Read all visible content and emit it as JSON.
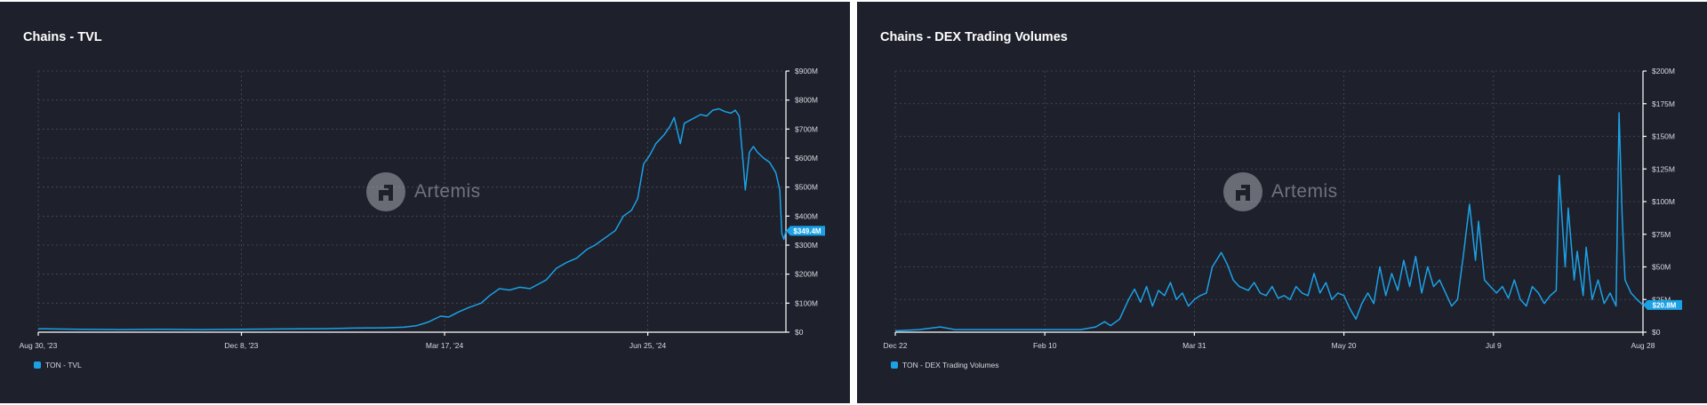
{
  "panels": [
    {
      "title": "Chains - TVL",
      "watermark": "Artemis",
      "legend": "TON - TVL",
      "series_color": "#1ba1e6",
      "last_value_label": "$349.4M"
    },
    {
      "title": "Chains - DEX Trading Volumes",
      "watermark": "Artemis",
      "legend": "TON - DEX Trading Volumes",
      "series_color": "#1ba1e6",
      "last_value_label": "$20.8M"
    }
  ],
  "chart_data": [
    {
      "type": "line",
      "title": "Chains - TVL",
      "series_name": "TON - TVL",
      "x_tick_labels": [
        "Aug 30, '23",
        "Dec 8, '23",
        "Mar 17, '24",
        "Jun 25, '24"
      ],
      "x_tick_days": [
        0,
        100,
        200,
        300
      ],
      "x_range": [
        0,
        368
      ],
      "y_range": [
        0,
        900
      ],
      "y_unit": "$M",
      "y_ticks": [
        0,
        100,
        200,
        300,
        400,
        500,
        600,
        700,
        800,
        900
      ],
      "y_tick_labels": [
        "$0",
        "$100M",
        "$200M",
        "$300M",
        "$400M",
        "$500M",
        "$600M",
        "$700M",
        "$800M",
        "$900M"
      ],
      "last_value": 349.4,
      "last_value_label": "$349.4M",
      "points": [
        [
          0,
          12
        ],
        [
          20,
          10
        ],
        [
          40,
          9
        ],
        [
          60,
          10
        ],
        [
          80,
          9
        ],
        [
          100,
          10
        ],
        [
          120,
          11
        ],
        [
          140,
          12
        ],
        [
          155,
          14
        ],
        [
          170,
          15
        ],
        [
          180,
          17
        ],
        [
          186,
          22
        ],
        [
          192,
          35
        ],
        [
          198,
          55
        ],
        [
          202,
          52
        ],
        [
          207,
          70
        ],
        [
          212,
          85
        ],
        [
          218,
          100
        ],
        [
          222,
          125
        ],
        [
          227,
          150
        ],
        [
          232,
          145
        ],
        [
          237,
          155
        ],
        [
          242,
          150
        ],
        [
          246,
          165
        ],
        [
          250,
          180
        ],
        [
          255,
          220
        ],
        [
          260,
          240
        ],
        [
          265,
          255
        ],
        [
          270,
          285
        ],
        [
          274,
          300
        ],
        [
          280,
          330
        ],
        [
          284,
          350
        ],
        [
          288,
          400
        ],
        [
          292,
          420
        ],
        [
          295,
          460
        ],
        [
          298,
          580
        ],
        [
          301,
          610
        ],
        [
          304,
          650
        ],
        [
          308,
          680
        ],
        [
          311,
          710
        ],
        [
          313,
          740
        ],
        [
          316,
          650
        ],
        [
          318,
          720
        ],
        [
          322,
          735
        ],
        [
          326,
          750
        ],
        [
          329,
          745
        ],
        [
          332,
          765
        ],
        [
          335,
          770
        ],
        [
          338,
          760
        ],
        [
          341,
          755
        ],
        [
          343,
          765
        ],
        [
          345,
          745
        ],
        [
          346,
          660
        ],
        [
          347,
          580
        ],
        [
          348,
          490
        ],
        [
          350,
          620
        ],
        [
          352,
          640
        ],
        [
          354,
          620
        ],
        [
          357,
          600
        ],
        [
          360,
          585
        ],
        [
          363,
          550
        ],
        [
          365,
          490
        ],
        [
          366,
          340
        ],
        [
          367,
          320
        ],
        [
          368,
          349.4
        ]
      ]
    },
    {
      "type": "line",
      "title": "Chains - DEX Trading Volumes",
      "series_name": "TON - DEX Trading Volumes",
      "x_tick_labels": [
        "Dec 22",
        "Feb 10",
        "Mar 31",
        "May 20",
        "Jul 9",
        "Aug 28"
      ],
      "x_tick_days": [
        0,
        50,
        100,
        150,
        200,
        250
      ],
      "x_range": [
        0,
        250
      ],
      "y_range": [
        0,
        200
      ],
      "y_unit": "$M",
      "y_ticks": [
        0,
        25,
        50,
        75,
        100,
        125,
        150,
        175,
        200
      ],
      "y_tick_labels": [
        "$0",
        "$25M",
        "$50M",
        "$75M",
        "$100M",
        "$125M",
        "$150M",
        "$175M",
        "$200M"
      ],
      "last_value": 20.8,
      "last_value_label": "$20.8M",
      "points": [
        [
          0,
          1
        ],
        [
          8,
          2
        ],
        [
          15,
          4
        ],
        [
          20,
          2
        ],
        [
          30,
          2
        ],
        [
          45,
          2
        ],
        [
          55,
          2
        ],
        [
          62,
          2
        ],
        [
          67,
          4
        ],
        [
          70,
          8
        ],
        [
          72,
          5
        ],
        [
          75,
          10
        ],
        [
          78,
          25
        ],
        [
          80,
          33
        ],
        [
          82,
          23
        ],
        [
          84,
          35
        ],
        [
          86,
          20
        ],
        [
          88,
          32
        ],
        [
          90,
          28
        ],
        [
          92,
          38
        ],
        [
          94,
          25
        ],
        [
          96,
          30
        ],
        [
          98,
          20
        ],
        [
          100,
          25
        ],
        [
          102,
          28
        ],
        [
          104,
          30
        ],
        [
          106,
          50
        ],
        [
          109,
          61
        ],
        [
          111,
          52
        ],
        [
          113,
          40
        ],
        [
          115,
          35
        ],
        [
          118,
          32
        ],
        [
          120,
          38
        ],
        [
          122,
          30
        ],
        [
          124,
          28
        ],
        [
          126,
          35
        ],
        [
          128,
          26
        ],
        [
          130,
          28
        ],
        [
          132,
          25
        ],
        [
          134,
          35
        ],
        [
          136,
          30
        ],
        [
          138,
          28
        ],
        [
          140,
          45
        ],
        [
          142,
          30
        ],
        [
          144,
          38
        ],
        [
          146,
          25
        ],
        [
          148,
          30
        ],
        [
          150,
          28
        ],
        [
          152,
          18
        ],
        [
          154,
          10
        ],
        [
          156,
          22
        ],
        [
          158,
          30
        ],
        [
          160,
          22
        ],
        [
          162,
          50
        ],
        [
          164,
          28
        ],
        [
          166,
          45
        ],
        [
          168,
          32
        ],
        [
          170,
          55
        ],
        [
          172,
          35
        ],
        [
          174,
          58
        ],
        [
          176,
          30
        ],
        [
          178,
          50
        ],
        [
          180,
          35
        ],
        [
          182,
          40
        ],
        [
          184,
          30
        ],
        [
          186,
          20
        ],
        [
          188,
          25
        ],
        [
          190,
          60
        ],
        [
          192,
          98
        ],
        [
          194,
          55
        ],
        [
          195,
          85
        ],
        [
          197,
          40
        ],
        [
          199,
          35
        ],
        [
          201,
          30
        ],
        [
          203,
          35
        ],
        [
          205,
          26
        ],
        [
          207,
          40
        ],
        [
          209,
          25
        ],
        [
          211,
          20
        ],
        [
          213,
          35
        ],
        [
          215,
          30
        ],
        [
          217,
          22
        ],
        [
          219,
          28
        ],
        [
          221,
          32
        ],
        [
          222,
          120
        ],
        [
          224,
          50
        ],
        [
          225,
          95
        ],
        [
          227,
          40
        ],
        [
          228,
          62
        ],
        [
          230,
          28
        ],
        [
          231,
          65
        ],
        [
          233,
          25
        ],
        [
          235,
          40
        ],
        [
          237,
          22
        ],
        [
          239,
          30
        ],
        [
          241,
          20
        ],
        [
          242,
          168
        ],
        [
          243,
          90
        ],
        [
          244,
          40
        ],
        [
          246,
          30
        ],
        [
          248,
          25
        ],
        [
          250,
          20.8
        ]
      ]
    }
  ]
}
